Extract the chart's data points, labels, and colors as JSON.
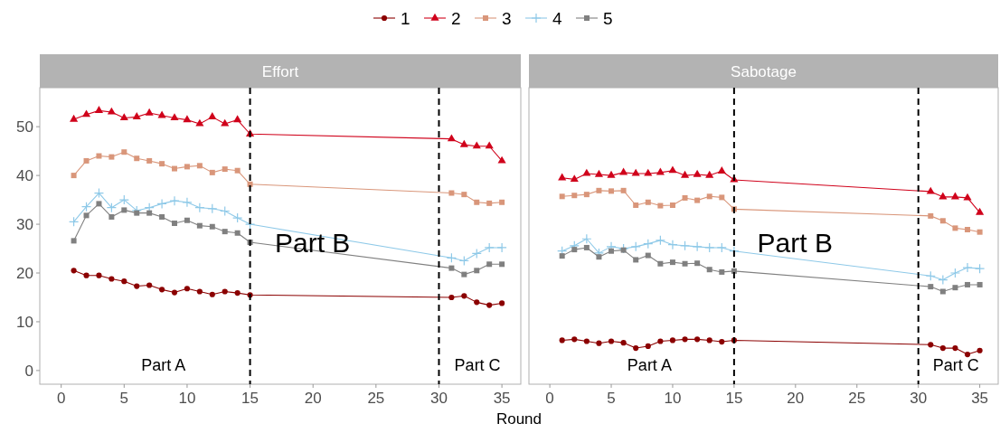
{
  "chart_data": [
    {
      "type": "line",
      "title": "Effort",
      "xlabel": "Round",
      "legend": "top",
      "xlim": [
        -1.7,
        36.5
      ],
      "xticks": [
        0,
        5,
        10,
        15,
        20,
        25,
        30,
        35
      ],
      "ylim": [
        -2.8,
        58
      ],
      "yticks": [
        0,
        10,
        20,
        30,
        40,
        50
      ],
      "grid": false,
      "line_style": "solid",
      "x": [
        1,
        2,
        3,
        4,
        5,
        6,
        7,
        8,
        9,
        10,
        11,
        12,
        13,
        14,
        15,
        31,
        32,
        33,
        34,
        35
      ],
      "ref_lines": [
        {
          "axis": "x",
          "value": 15,
          "color": "#000000",
          "line_style": "dashed"
        },
        {
          "axis": "x",
          "value": 30,
          "color": "#000000",
          "line_style": "dashed"
        }
      ],
      "annotations": [
        "Part A",
        "Part B",
        "Part C"
      ],
      "series": [
        {
          "name": "1",
          "color": "#8b0000",
          "marker": "circle",
          "values": [
            20.5,
            19.5,
            19.5,
            18.8,
            18.3,
            17.3,
            17.5,
            16.6,
            16,
            16.8,
            16.2,
            15.6,
            16.2,
            15.9,
            15.5,
            15,
            15.3,
            14,
            13.4,
            13.8
          ]
        },
        {
          "name": "2",
          "color": "#d0021b",
          "marker": "triangle",
          "values": [
            51.5,
            52.5,
            53.3,
            53,
            51.8,
            52,
            52.8,
            52.3,
            51.8,
            51.4,
            50.6,
            52,
            50.6,
            51.4,
            48.5,
            47.5,
            46.3,
            46,
            46,
            43
          ]
        },
        {
          "name": "3",
          "color": "#d9967a",
          "marker": "square",
          "values": [
            40,
            43,
            44,
            43.8,
            44.8,
            43.5,
            43,
            42.4,
            41.4,
            41.8,
            42,
            40.6,
            41.3,
            41,
            38.2,
            36.4,
            36.1,
            34.5,
            34.3,
            34.5
          ]
        },
        {
          "name": "4",
          "color": "#8ec9e8",
          "marker": "cross",
          "values": [
            30.5,
            33.6,
            36.4,
            33.4,
            35,
            32.8,
            33.4,
            34.2,
            34.8,
            34.5,
            33.4,
            33.2,
            32.7,
            31.3,
            30,
            23.1,
            22.5,
            24,
            25.2,
            25.2
          ]
        },
        {
          "name": "5",
          "color": "#808080",
          "marker": "square",
          "values": [
            26.6,
            31.8,
            34.2,
            31.5,
            32.9,
            32.3,
            32.3,
            31.5,
            30.2,
            30.8,
            29.7,
            29.5,
            28.5,
            28.2,
            26.3,
            21,
            19.7,
            20.5,
            21.8,
            21.8
          ]
        }
      ]
    },
    {
      "type": "line",
      "title": "Sabotage",
      "tick_labels": "x",
      "xlim": [
        -1.7,
        36.5
      ],
      "xticks": [
        0,
        5,
        10,
        15,
        20,
        25,
        30,
        35
      ],
      "ylim": [
        -2.8,
        58
      ],
      "grid": false,
      "line_style": "solid",
      "x": [
        1,
        2,
        3,
        4,
        5,
        6,
        7,
        8,
        9,
        10,
        11,
        12,
        13,
        14,
        15,
        31,
        32,
        33,
        34,
        35
      ],
      "ref_lines": [
        {
          "axis": "x",
          "value": 15,
          "color": "#000000",
          "line_style": "dashed"
        },
        {
          "axis": "x",
          "value": 30,
          "color": "#000000",
          "line_style": "dashed"
        }
      ],
      "annotations": [
        "Part A",
        "Part B",
        "Part C"
      ],
      "series": [
        {
          "color": "#8b0000",
          "marker": "circle",
          "values": [
            6.2,
            6.4,
            6,
            5.6,
            6,
            5.7,
            4.6,
            5,
            6,
            6.2,
            6.4,
            6.4,
            6.2,
            5.9,
            6.2,
            5.3,
            4.6,
            4.6,
            3.3,
            4.1
          ]
        },
        {
          "color": "#d0021b",
          "marker": "triangle",
          "values": [
            39.5,
            39.2,
            40.4,
            40.2,
            40,
            40.6,
            40.4,
            40.4,
            40.6,
            41,
            40,
            40.2,
            40,
            40.9,
            39.1,
            36.7,
            35.6,
            35.6,
            35.4,
            32.4
          ]
        },
        {
          "color": "#d9967a",
          "marker": "square",
          "values": [
            35.7,
            35.9,
            36.1,
            36.9,
            36.8,
            36.9,
            33.9,
            34.5,
            33.8,
            33.9,
            35.4,
            34.9,
            35.7,
            35.5,
            33.1,
            31.7,
            30.7,
            29.2,
            28.9,
            28.4
          ]
        },
        {
          "color": "#8ec9e8",
          "marker": "cross",
          "values": [
            24.5,
            25.6,
            27,
            24.1,
            25.4,
            25,
            25.4,
            26,
            26.7,
            25.8,
            25.6,
            25.4,
            25.2,
            25.2,
            24.5,
            19.4,
            18.6,
            20,
            21.1,
            20.9
          ]
        },
        {
          "color": "#808080",
          "marker": "square",
          "values": [
            23.5,
            24.8,
            25.2,
            23.3,
            24.5,
            24.7,
            22.7,
            23.6,
            21.9,
            22.2,
            21.9,
            22,
            20.7,
            20.2,
            20.4,
            17.2,
            16.2,
            17,
            17.6,
            17.6
          ]
        }
      ]
    }
  ]
}
